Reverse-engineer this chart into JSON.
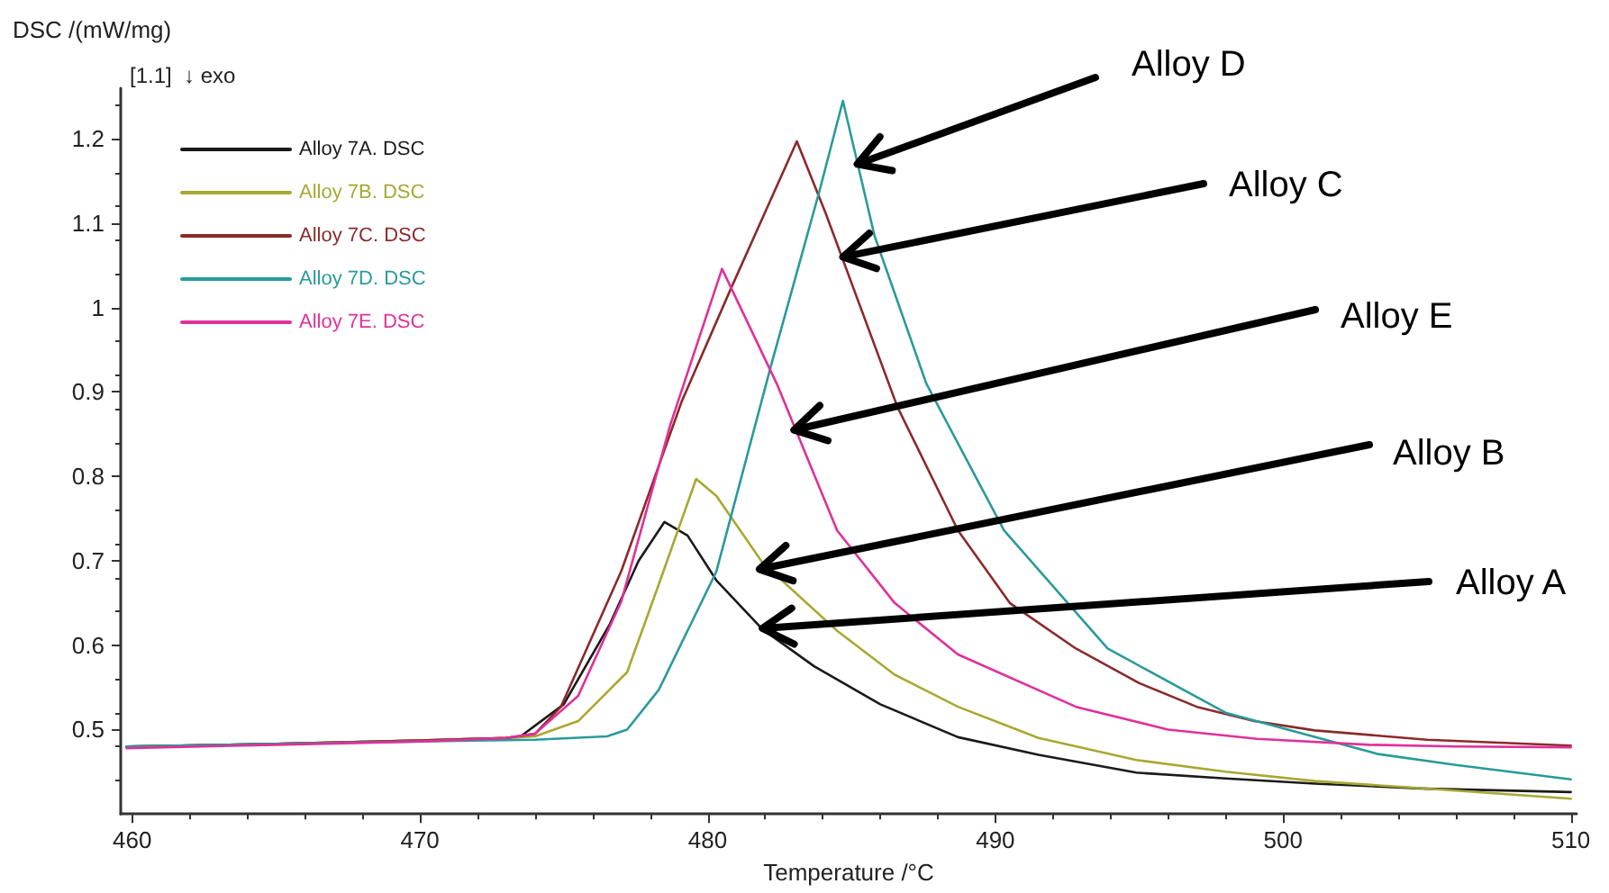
{
  "chart_data": {
    "type": "line",
    "xlabel": "Temperature /°C",
    "ylabel": "DSC /(mW/mg)",
    "xlim": [
      459.6,
      510.2
    ],
    "ylim": [
      0.4,
      1.26
    ],
    "xticks": [
      460,
      470,
      480,
      490,
      500,
      510
    ],
    "yticks": [
      0.5,
      0.6,
      0.7,
      0.8,
      0.9,
      1.0,
      1.1,
      1.2
    ],
    "grid": false,
    "legend": "top left",
    "line_style": "solid",
    "marker": "none",
    "series": [
      {
        "name": "Alloy 7A. DSC",
        "color": "#1a1a1a",
        "x": [
          459.8,
          465,
          470,
          473,
          473.5,
          475,
          476.6,
          477.6,
          478.5,
          479.3,
          480.3,
          481.9,
          483.7,
          486,
          488.7,
          491.5,
          494.9,
          498,
          501.1,
          505,
          510
        ],
        "values": [
          0.48,
          0.483,
          0.487,
          0.49,
          0.492,
          0.53,
          0.625,
          0.7,
          0.746,
          0.73,
          0.677,
          0.619,
          0.575,
          0.53,
          0.491,
          0.47,
          0.449,
          0.442,
          0.436,
          0.43,
          0.426
        ]
      },
      {
        "name": "Alloy 7B. DSC",
        "color": "#a8a832",
        "x": [
          459.8,
          465,
          470,
          473,
          474,
          475.5,
          477.2,
          478.3,
          479.6,
          480.3,
          481.9,
          484.5,
          486.5,
          488.7,
          491.5,
          494.9,
          498,
          501.1,
          505,
          510
        ],
        "values": [
          0.48,
          0.483,
          0.487,
          0.49,
          0.492,
          0.51,
          0.568,
          0.672,
          0.797,
          0.777,
          0.698,
          0.617,
          0.565,
          0.527,
          0.49,
          0.464,
          0.45,
          0.439,
          0.43,
          0.418
        ]
      },
      {
        "name": "Alloy 7C. DSC",
        "color": "#8b2a2a",
        "x": [
          459.8,
          465,
          470,
          473,
          474,
          474.9,
          477,
          479.1,
          480.8,
          483.1,
          484.1,
          486.6,
          488.7,
          490.5,
          492.8,
          495,
          497,
          499,
          501.1,
          505,
          510
        ],
        "values": [
          0.48,
          0.483,
          0.487,
          0.49,
          0.495,
          0.527,
          0.688,
          0.889,
          1.022,
          1.197,
          1.112,
          0.882,
          0.736,
          0.65,
          0.596,
          0.555,
          0.527,
          0.51,
          0.499,
          0.488,
          0.481
        ]
      },
      {
        "name": "Alloy 7D. DSC",
        "color": "#2a9a9a",
        "x": [
          459.8,
          465,
          470,
          474,
          476.5,
          477.2,
          478.3,
          480.3,
          482.2,
          483.9,
          484.7,
          485.8,
          487.6,
          490.3,
          493.9,
          498,
          503.3,
          506,
          510
        ],
        "values": [
          0.48,
          0.483,
          0.486,
          0.488,
          0.492,
          0.5,
          0.547,
          0.687,
          0.931,
          1.14,
          1.245,
          1.085,
          0.91,
          0.736,
          0.596,
          0.52,
          0.471,
          0.458,
          0.441
        ]
      },
      {
        "name": "Alloy 7E. DSC",
        "color": "#e0309a",
        "x": [
          459.8,
          465,
          470,
          473,
          474,
          475.5,
          477,
          478.7,
          480.5,
          482.4,
          484.5,
          486.5,
          488.7,
          492.8,
          496,
          499.1,
          503,
          506,
          510
        ],
        "values": [
          0.478,
          0.482,
          0.486,
          0.49,
          0.495,
          0.54,
          0.652,
          0.861,
          1.046,
          0.91,
          0.736,
          0.65,
          0.589,
          0.527,
          0.5,
          0.489,
          0.482,
          0.48,
          0.479
        ]
      }
    ],
    "annotations": [
      "[1.1]",
      "↓ exo",
      {
        "text": "Alloy D",
        "x": 485.2,
        "y": 1.17
      },
      {
        "text": "Alloy C",
        "x": 484.7,
        "y": 1.06
      },
      {
        "text": "Alloy E",
        "x": 483.0,
        "y": 0.855
      },
      {
        "text": "Alloy B",
        "x": 481.8,
        "y": 0.69
      },
      {
        "text": "Alloy A",
        "x": 481.9,
        "y": 0.62
      }
    ]
  }
}
